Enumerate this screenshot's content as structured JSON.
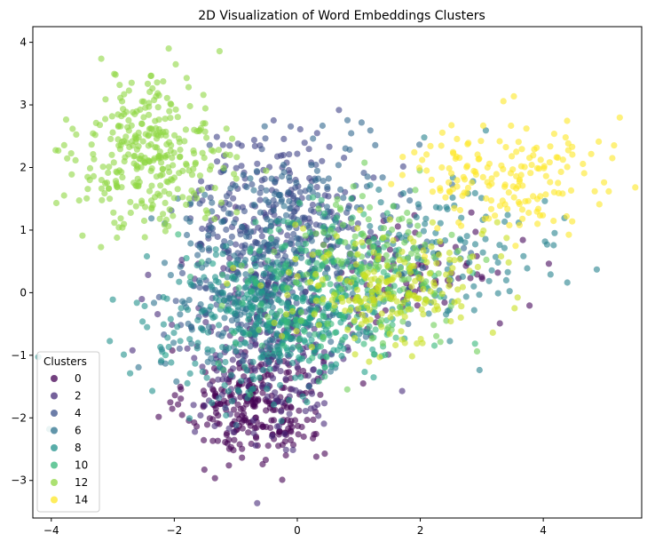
{
  "chart_data": {
    "type": "scatter",
    "title": "2D Visualization of Word Embeddings Clusters",
    "xlabel": "",
    "ylabel": "",
    "xlim": [
      -4.3,
      5.6
    ],
    "ylim": [
      -3.6,
      4.25
    ],
    "x_ticks": [
      -4,
      -2,
      0,
      2,
      4
    ],
    "y_ticks": [
      -3,
      -2,
      -1,
      0,
      1,
      2,
      3,
      4
    ],
    "x_tick_labels": [
      "−4",
      "−2",
      "0",
      "2",
      "4"
    ],
    "y_tick_labels": [
      "−3",
      "−2",
      "−1",
      "0",
      "1",
      "2",
      "3",
      "4"
    ],
    "grid": false,
    "marker_alpha": 0.6,
    "legend": {
      "title": "Clusters",
      "placement": "lower-left",
      "entries": [
        {
          "label": "0",
          "color": "#440154"
        },
        {
          "label": "2",
          "color": "#472c7a"
        },
        {
          "label": "4",
          "color": "#3b528b"
        },
        {
          "label": "6",
          "color": "#2c728e"
        },
        {
          "label": "8",
          "color": "#21918c"
        },
        {
          "label": "10",
          "color": "#35b779"
        },
        {
          "label": "12",
          "color": "#90d743"
        },
        {
          "label": "14",
          "color": "#fde725"
        }
      ]
    },
    "series": [
      {
        "cluster": 0,
        "color": "#440154",
        "center": [
          -0.7,
          -1.8
        ],
        "spread": [
          0.55,
          0.45
        ],
        "count": 260
      },
      {
        "cluster": 1,
        "color": "#46085c",
        "center": [
          1.8,
          0.3
        ],
        "spread": [
          0.9,
          0.5
        ],
        "count": 90
      },
      {
        "cluster": 2,
        "color": "#472c7a",
        "center": [
          -0.5,
          -0.9
        ],
        "spread": [
          0.75,
          0.75
        ],
        "count": 220
      },
      {
        "cluster": 3,
        "color": "#404387",
        "center": [
          -0.3,
          1.4
        ],
        "spread": [
          0.7,
          0.6
        ],
        "count": 180
      },
      {
        "cluster": 4,
        "color": "#3b528b",
        "center": [
          -0.4,
          0.4
        ],
        "spread": [
          0.8,
          0.8
        ],
        "count": 220
      },
      {
        "cluster": 5,
        "color": "#31688e",
        "center": [
          0.2,
          1.1
        ],
        "spread": [
          0.9,
          0.7
        ],
        "count": 160
      },
      {
        "cluster": 6,
        "color": "#2c728e",
        "center": [
          -0.6,
          0.0
        ],
        "spread": [
          0.8,
          0.7
        ],
        "count": 200
      },
      {
        "cluster": 7,
        "color": "#26828e",
        "center": [
          2.4,
          0.6
        ],
        "spread": [
          1.0,
          0.6
        ],
        "count": 120
      },
      {
        "cluster": 8,
        "color": "#21918c",
        "center": [
          -0.9,
          -0.5
        ],
        "spread": [
          0.8,
          0.6
        ],
        "count": 200
      },
      {
        "cluster": 9,
        "color": "#1fa088",
        "center": [
          0.1,
          -0.4
        ],
        "spread": [
          0.7,
          0.6
        ],
        "count": 160
      },
      {
        "cluster": 10,
        "color": "#35b779",
        "center": [
          0.5,
          0.0
        ],
        "spread": [
          0.9,
          0.7
        ],
        "count": 200
      },
      {
        "cluster": 11,
        "color": "#6ece58",
        "center": [
          1.2,
          0.4
        ],
        "spread": [
          0.8,
          0.6
        ],
        "count": 150
      },
      {
        "cluster": 12,
        "color": "#90d743",
        "center": [
          -2.4,
          2.2
        ],
        "spread": [
          0.6,
          0.6
        ],
        "count": 320
      },
      {
        "cluster": 13,
        "color": "#c8e020",
        "center": [
          1.5,
          0.1
        ],
        "spread": [
          0.8,
          0.5
        ],
        "count": 200
      },
      {
        "cluster": 14,
        "color": "#fde725",
        "center": [
          3.4,
          1.9
        ],
        "spread": [
          0.8,
          0.45
        ],
        "count": 170
      }
    ]
  }
}
